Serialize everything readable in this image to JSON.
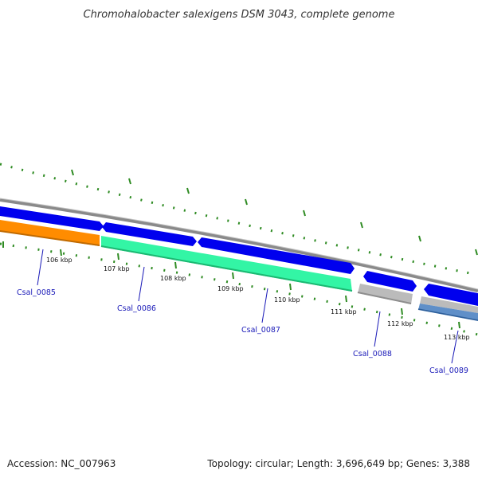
{
  "title": "Chromohalobacter salexigens DSM 3043, complete genome",
  "footer": {
    "accession": "Accession: NC_007963",
    "summary": "Topology: circular; Length: 3,696,649 bp; Genes: 3,388"
  },
  "colors": {
    "backbone": "#8a8a8a",
    "forward_cds": "#0000ee",
    "tick": "#2e8b22",
    "label_line": "#1a1ab8",
    "orange": "#ff8c00",
    "mint": "#33f5a5",
    "grey": "#bbbbbb",
    "steel": "#5f8fc8"
  },
  "tick_labels": [
    "106 kbp",
    "107 kbp",
    "108 kbp",
    "109 kbp",
    "110 kbp",
    "111 kbp",
    "112 kbp",
    "113 kbp"
  ],
  "gene_labels": [
    "Csal_0085",
    "Csal_0086",
    "Csal_0087",
    "Csal_0088",
    "Csal_0089"
  ]
}
